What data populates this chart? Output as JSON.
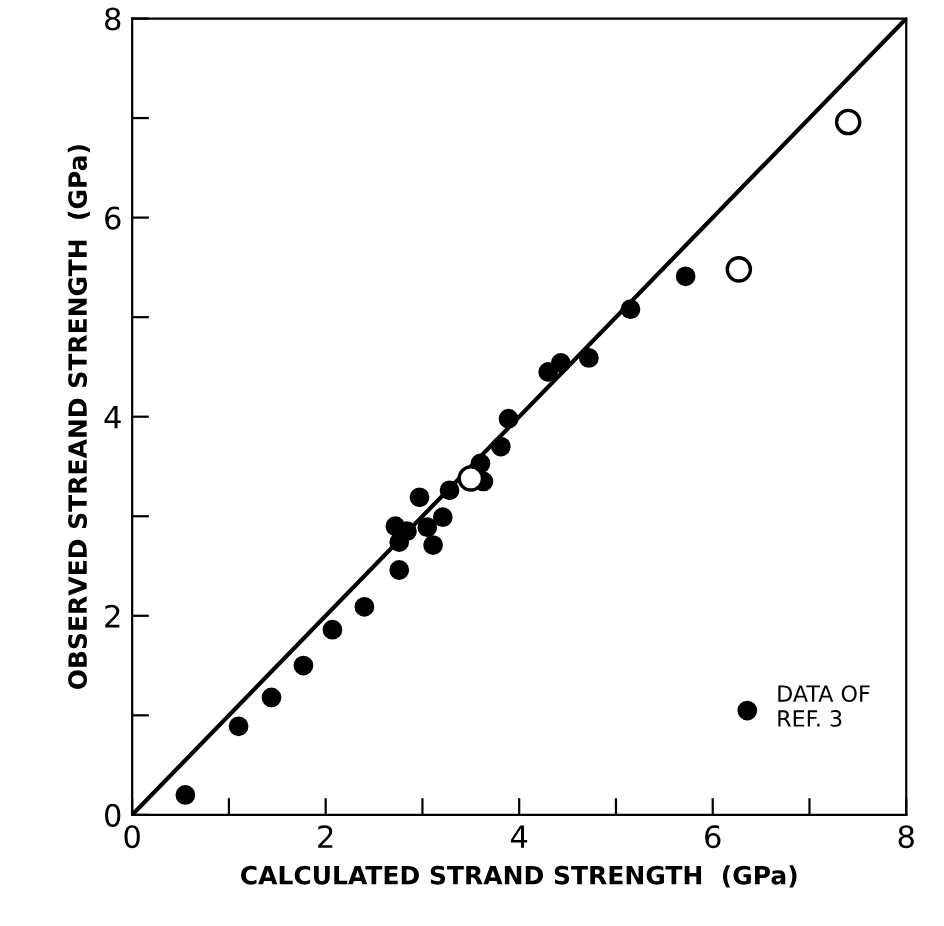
{
  "chart_data": {
    "type": "scatter",
    "xlabel": "CALCULATED STRAND STRENGTH  (GPa)",
    "ylabel": "OBSERVED STREAND STRENGTH  (GPa)",
    "xlim": [
      0,
      8
    ],
    "ylim": [
      0,
      8
    ],
    "xticks": [
      0,
      {
        "value": 1,
        "label": null
      },
      2,
      {
        "value": 3,
        "label": null
      },
      4,
      {
        "value": 5,
        "label": null
      },
      6,
      {
        "value": 7,
        "label": null
      },
      8
    ],
    "yticks": [
      0,
      {
        "value": 1,
        "label": null
      },
      2,
      {
        "value": 3,
        "label": null
      },
      4,
      {
        "value": 5,
        "label": null
      },
      6,
      {
        "value": 7,
        "label": null
      },
      8
    ],
    "grid": false,
    "legend": "bottom right",
    "marker": "circle",
    "series": [
      {
        "name": "DATA OF\nREF. 3",
        "color": "#000000",
        "x": [
          0.55,
          1.1,
          1.44,
          1.77,
          2.07,
          2.4,
          2.76,
          2.72,
          2.76,
          2.84,
          2.97,
          3.05,
          3.11,
          3.21,
          3.28,
          3.63,
          3.6,
          3.81,
          3.89,
          4.3,
          4.43,
          4.72,
          5.15,
          5.72
        ],
        "values": [
          0.2,
          0.89,
          1.18,
          1.5,
          1.86,
          2.09,
          2.46,
          2.9,
          2.74,
          2.85,
          3.19,
          2.89,
          2.71,
          2.99,
          3.26,
          3.35,
          3.53,
          3.7,
          3.98,
          4.45,
          4.54,
          4.59,
          5.08,
          5.41
        ]
      },
      {
        "color": "#000000",
        "marker": "open_circle",
        "x": [
          3.5,
          6.27,
          7.4
        ],
        "values": [
          3.38,
          5.48,
          6.96
        ]
      },
      {
        "type": "line",
        "color": "#000000",
        "marker": "none",
        "x": [
          0,
          8
        ],
        "values": [
          0,
          8
        ]
      }
    ]
  }
}
